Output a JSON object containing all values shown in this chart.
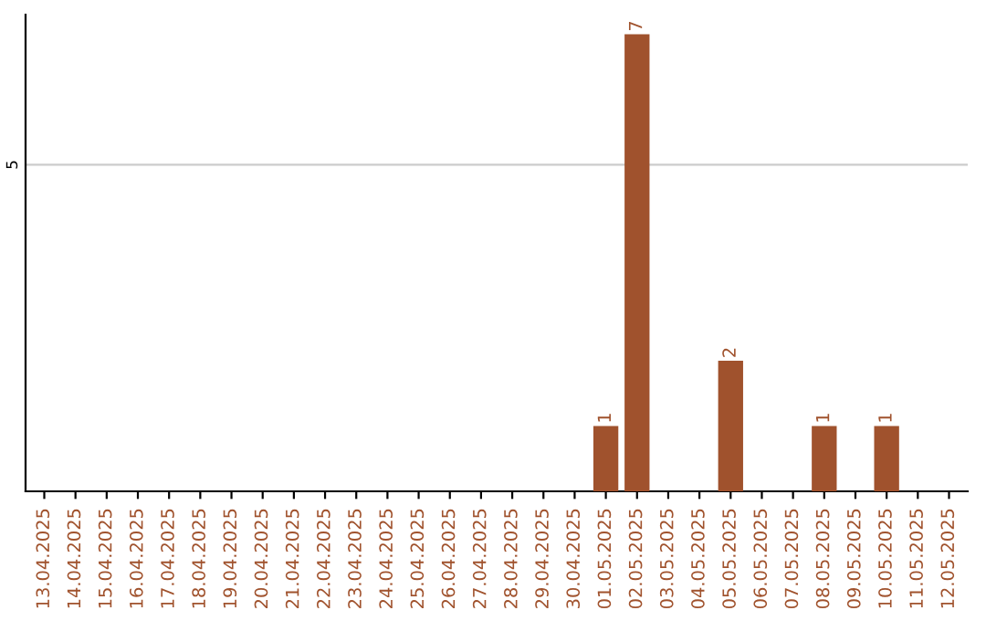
{
  "chart_data": {
    "type": "bar",
    "categories": [
      "13.04.2025",
      "14.04.2025",
      "15.04.2025",
      "16.04.2025",
      "17.04.2025",
      "18.04.2025",
      "19.04.2025",
      "20.04.2025",
      "21.04.2025",
      "22.04.2025",
      "23.04.2025",
      "24.04.2025",
      "25.04.2025",
      "26.04.2025",
      "27.04.2025",
      "28.04.2025",
      "29.04.2025",
      "30.04.2025",
      "01.05.2025",
      "02.05.2025",
      "03.05.2025",
      "04.05.2025",
      "05.05.2025",
      "06.05.2025",
      "07.05.2025",
      "08.05.2025",
      "09.05.2025",
      "10.05.2025",
      "11.05.2025",
      "12.05.2025"
    ],
    "values": [
      null,
      null,
      null,
      null,
      null,
      null,
      null,
      null,
      null,
      null,
      null,
      null,
      null,
      null,
      null,
      null,
      null,
      null,
      1,
      7,
      null,
      null,
      2,
      null,
      null,
      1,
      null,
      1,
      null,
      null
    ],
    "data_labels": true,
    "color": "#a0522d",
    "ylim": [
      0,
      7.3
    ],
    "yticks": [
      5
    ],
    "grid": "y"
  }
}
